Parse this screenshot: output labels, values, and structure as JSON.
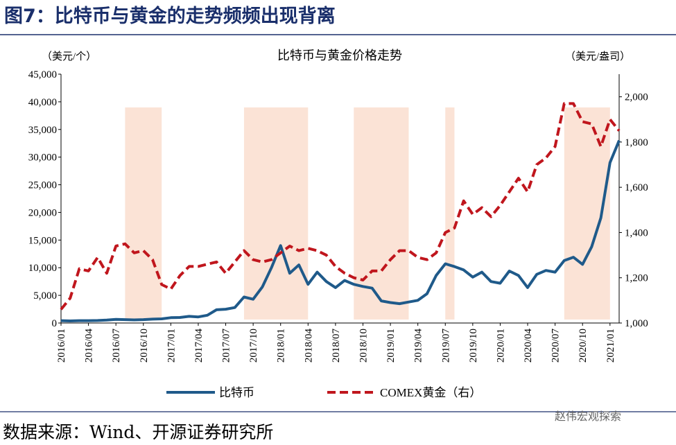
{
  "chart_data": {
    "type": "line",
    "header": "图7：比特币与黄金的走势频频出现背离",
    "title": "比特币与黄金价格走势",
    "y_label": "（美元/个）",
    "y2_label": "（美元/盎司）",
    "source": "数据来源：Wind、开源证券研究所",
    "watermark": "赵伟宏观探索",
    "x": [
      "2016/01",
      "2016/02",
      "2016/03",
      "2016/04",
      "2016/05",
      "2016/06",
      "2016/07",
      "2016/08",
      "2016/09",
      "2016/10",
      "2016/11",
      "2016/12",
      "2017/01",
      "2017/02",
      "2017/03",
      "2017/04",
      "2017/05",
      "2017/06",
      "2017/07",
      "2017/08",
      "2017/09",
      "2017/10",
      "2017/11",
      "2017/12",
      "2018/01",
      "2018/02",
      "2018/03",
      "2018/04",
      "2018/05",
      "2018/06",
      "2018/07",
      "2018/08",
      "2018/09",
      "2018/10",
      "2018/11",
      "2018/12",
      "2019/01",
      "2019/02",
      "2019/03",
      "2019/04",
      "2019/05",
      "2019/06",
      "2019/07",
      "2019/08",
      "2019/09",
      "2019/10",
      "2019/11",
      "2019/12",
      "2020/01",
      "2020/02",
      "2020/03",
      "2020/04",
      "2020/05",
      "2020/06",
      "2020/07",
      "2020/08",
      "2020/09",
      "2020/10",
      "2020/11",
      "2020/12",
      "2021/01",
      "2021/02"
    ],
    "series": [
      {
        "name": "比特币",
        "color": "#1f5a8a",
        "style": "solid",
        "axis": "y",
        "values": [
          430,
          370,
          430,
          420,
          450,
          530,
          670,
          620,
          570,
          610,
          700,
          750,
          970,
          1000,
          1200,
          1100,
          1400,
          2400,
          2500,
          2800,
          4700,
          4300,
          6500,
          10000,
          14000,
          9000,
          10500,
          7000,
          9200,
          7500,
          6400,
          7700,
          7000,
          6600,
          6300,
          4000,
          3700,
          3500,
          3800,
          4100,
          5300,
          8600,
          10700,
          10200,
          9600,
          8300,
          9200,
          7500,
          7200,
          9400,
          8600,
          6400,
          8800,
          9500,
          9200,
          11300,
          11900,
          10600,
          13800,
          19000,
          29000,
          33000
        ]
      },
      {
        "name": "COMEX黄金（右）",
        "color": "#c0161d",
        "style": "dashed",
        "axis": "y2",
        "values": [
          1060,
          1110,
          1240,
          1230,
          1290,
          1220,
          1340,
          1350,
          1310,
          1320,
          1280,
          1170,
          1150,
          1210,
          1250,
          1250,
          1260,
          1270,
          1220,
          1270,
          1320,
          1280,
          1270,
          1280,
          1310,
          1340,
          1320,
          1330,
          1320,
          1300,
          1250,
          1220,
          1200,
          1190,
          1230,
          1230,
          1280,
          1320,
          1320,
          1290,
          1280,
          1310,
          1400,
          1420,
          1540,
          1480,
          1510,
          1470,
          1520,
          1580,
          1640,
          1580,
          1700,
          1730,
          1780,
          1970,
          1970,
          1890,
          1880,
          1780,
          1900,
          1850
        ]
      }
    ],
    "highlights": [
      [
        "2016/08",
        "2016/12"
      ],
      [
        "2017/09",
        "2018/04"
      ],
      [
        "2018/09",
        "2019/03"
      ],
      [
        "2019/07",
        "2019/08"
      ],
      [
        "2020/08",
        "2021/01"
      ]
    ],
    "highlight_color": "#fbe3d6",
    "xlim": [
      "2016/01",
      "2021/02"
    ],
    "xticks": [
      "2016/01",
      "2016/04",
      "2016/07",
      "2016/10",
      "2017/01",
      "2017/04",
      "2017/07",
      "2017/10",
      "2018/01",
      "2018/04",
      "2018/07",
      "2018/10",
      "2019/01",
      "2019/04",
      "2019/07",
      "2019/10",
      "2020/01",
      "2020/04",
      "2020/07",
      "2020/10",
      "2021/01"
    ],
    "ylim": [
      0,
      45000
    ],
    "yticks": [
      0,
      {
        "value": 5000,
        "label": "5,000"
      },
      {
        "value": 10000,
        "label": "10,000"
      },
      {
        "value": 15000,
        "label": "15,000"
      },
      {
        "value": 20000,
        "label": "20,000"
      },
      {
        "value": 25000,
        "label": "25,000"
      },
      {
        "value": 30000,
        "label": "30,000"
      },
      {
        "value": 35000,
        "label": "35,000"
      },
      {
        "value": 40000,
        "label": "40,000"
      },
      {
        "value": 45000,
        "label": "45,000"
      }
    ],
    "y2lim": [
      1000,
      2100
    ],
    "y2ticks": [
      {
        "value": 1000,
        "label": "1,000"
      },
      {
        "value": 1200,
        "label": "1,200"
      },
      {
        "value": 1400,
        "label": "1,400"
      },
      {
        "value": 1600,
        "label": "1,600"
      },
      {
        "value": 1800,
        "label": "1,800"
      },
      {
        "value": 2000,
        "label": "2,000"
      }
    ],
    "legend": "bottom"
  }
}
